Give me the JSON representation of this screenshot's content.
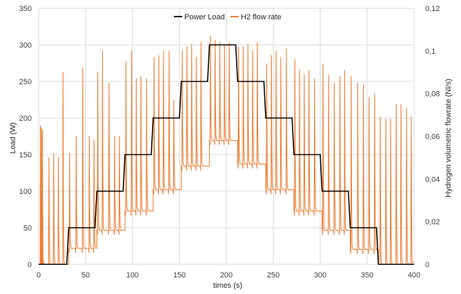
{
  "chart_data": {
    "type": "line",
    "title": "",
    "xlabel": "times (s)",
    "ylabel_left": "Load (W)",
    "ylabel_right": "Hydrogen volumetric flowrate (Nl/s)",
    "x_ticks": [
      "0",
      "50",
      "100",
      "150",
      "200",
      "250",
      "300",
      "350",
      "400"
    ],
    "y_left_ticks": [
      "0",
      "50",
      "100",
      "150",
      "200",
      "250",
      "300",
      "350"
    ],
    "y_right_ticks": [
      "0",
      "0,02",
      "0,04",
      "0,06",
      "0,08",
      "0,1",
      "0,12"
    ],
    "xlim": [
      0,
      400
    ],
    "ylim_left": [
      0,
      350
    ],
    "ylim_right": [
      0,
      0.12
    ],
    "grid": true,
    "legend_position": "top",
    "series": [
      {
        "name": "Power Load",
        "axis": "left",
        "color": "#000000",
        "x": [
          0,
          30,
          31,
          32,
          60,
          61,
          62,
          90,
          91,
          92,
          120,
          121,
          122,
          150,
          151,
          152,
          180,
          181,
          182,
          210,
          211,
          212,
          240,
          241,
          242,
          270,
          271,
          272,
          300,
          301,
          302,
          330,
          331,
          332,
          360,
          361,
          362,
          400
        ],
        "y": [
          0,
          0,
          25,
          50,
          50,
          75,
          100,
          100,
          125,
          150,
          150,
          175,
          200,
          200,
          225,
          250,
          250,
          275,
          300,
          300,
          275,
          250,
          250,
          225,
          200,
          200,
          175,
          150,
          150,
          125,
          100,
          100,
          75,
          50,
          50,
          25,
          0,
          0
        ]
      },
      {
        "name": "H2 flow rate",
        "axis": "right",
        "color": "#ED7D31",
        "baseline_segments": [
          {
            "x_start": 0,
            "x_end": 32,
            "value": 0.0
          },
          {
            "x_start": 32,
            "x_end": 62,
            "value": 0.0075
          },
          {
            "x_start": 62,
            "x_end": 92,
            "value": 0.016
          },
          {
            "x_start": 92,
            "x_end": 122,
            "value": 0.025
          },
          {
            "x_start": 122,
            "x_end": 152,
            "value": 0.035
          },
          {
            "x_start": 152,
            "x_end": 182,
            "value": 0.046
          },
          {
            "x_start": 182,
            "x_end": 212,
            "value": 0.058
          },
          {
            "x_start": 212,
            "x_end": 242,
            "value": 0.047
          },
          {
            "x_start": 242,
            "x_end": 272,
            "value": 0.035
          },
          {
            "x_start": 272,
            "x_end": 302,
            "value": 0.025
          },
          {
            "x_start": 302,
            "x_end": 332,
            "value": 0.016
          },
          {
            "x_start": 332,
            "x_end": 362,
            "value": 0.007
          },
          {
            "x_start": 362,
            "x_end": 400,
            "value": 0.0
          }
        ],
        "spikes": [
          {
            "x": 2,
            "y": 0.065
          },
          {
            "x": 3,
            "y": 0.064
          },
          {
            "x": 4,
            "y": 0.063
          },
          {
            "x": 11,
            "y": 0.05
          },
          {
            "x": 16,
            "y": 0.052
          },
          {
            "x": 21,
            "y": 0.05
          },
          {
            "x": 26,
            "y": 0.09
          },
          {
            "x": 33,
            "y": 0.052
          },
          {
            "x": 40,
            "y": 0.06
          },
          {
            "x": 47,
            "y": 0.092
          },
          {
            "x": 54,
            "y": 0.06
          },
          {
            "x": 59,
            "y": 0.058
          },
          {
            "x": 63,
            "y": 0.09
          },
          {
            "x": 68,
            "y": 0.1
          },
          {
            "x": 75,
            "y": 0.085
          },
          {
            "x": 81,
            "y": 0.06
          },
          {
            "x": 86,
            "y": 0.06
          },
          {
            "x": 93,
            "y": 0.095
          },
          {
            "x": 99,
            "y": 0.1
          },
          {
            "x": 104,
            "y": 0.087
          },
          {
            "x": 109,
            "y": 0.088
          },
          {
            "x": 115,
            "y": 0.087
          },
          {
            "x": 123,
            "y": 0.097
          },
          {
            "x": 128,
            "y": 0.098
          },
          {
            "x": 133,
            "y": 0.1
          },
          {
            "x": 139,
            "y": 0.1
          },
          {
            "x": 144,
            "y": 0.077
          },
          {
            "x": 153,
            "y": 0.1
          },
          {
            "x": 158,
            "y": 0.102
          },
          {
            "x": 163,
            "y": 0.103
          },
          {
            "x": 168,
            "y": 0.097
          },
          {
            "x": 173,
            "y": 0.104
          },
          {
            "x": 183,
            "y": 0.107
          },
          {
            "x": 188,
            "y": 0.105
          },
          {
            "x": 193,
            "y": 0.104
          },
          {
            "x": 198,
            "y": 0.103
          },
          {
            "x": 203,
            "y": 0.104
          },
          {
            "x": 213,
            "y": 0.102
          },
          {
            "x": 218,
            "y": 0.102
          },
          {
            "x": 223,
            "y": 0.103
          },
          {
            "x": 228,
            "y": 0.1
          },
          {
            "x": 233,
            "y": 0.104
          },
          {
            "x": 243,
            "y": 0.094
          },
          {
            "x": 248,
            "y": 0.098
          },
          {
            "x": 253,
            "y": 0.1
          },
          {
            "x": 258,
            "y": 0.097
          },
          {
            "x": 264,
            "y": 0.101
          },
          {
            "x": 273,
            "y": 0.096
          },
          {
            "x": 278,
            "y": 0.091
          },
          {
            "x": 283,
            "y": 0.089
          },
          {
            "x": 288,
            "y": 0.091
          },
          {
            "x": 294,
            "y": 0.087
          },
          {
            "x": 303,
            "y": 0.094
          },
          {
            "x": 309,
            "y": 0.089
          },
          {
            "x": 315,
            "y": 0.085
          },
          {
            "x": 321,
            "y": 0.088
          },
          {
            "x": 326,
            "y": 0.091
          },
          {
            "x": 333,
            "y": 0.088
          },
          {
            "x": 340,
            "y": 0.085
          },
          {
            "x": 346,
            "y": 0.084
          },
          {
            "x": 352,
            "y": 0.078
          },
          {
            "x": 358,
            "y": 0.08
          },
          {
            "x": 364,
            "y": 0.069
          },
          {
            "x": 370,
            "y": 0.068
          },
          {
            "x": 375,
            "y": 0.068
          },
          {
            "x": 381,
            "y": 0.075
          },
          {
            "x": 386,
            "y": 0.075
          },
          {
            "x": 392,
            "y": 0.073
          },
          {
            "x": 397,
            "y": 0.069
          }
        ]
      }
    ]
  }
}
